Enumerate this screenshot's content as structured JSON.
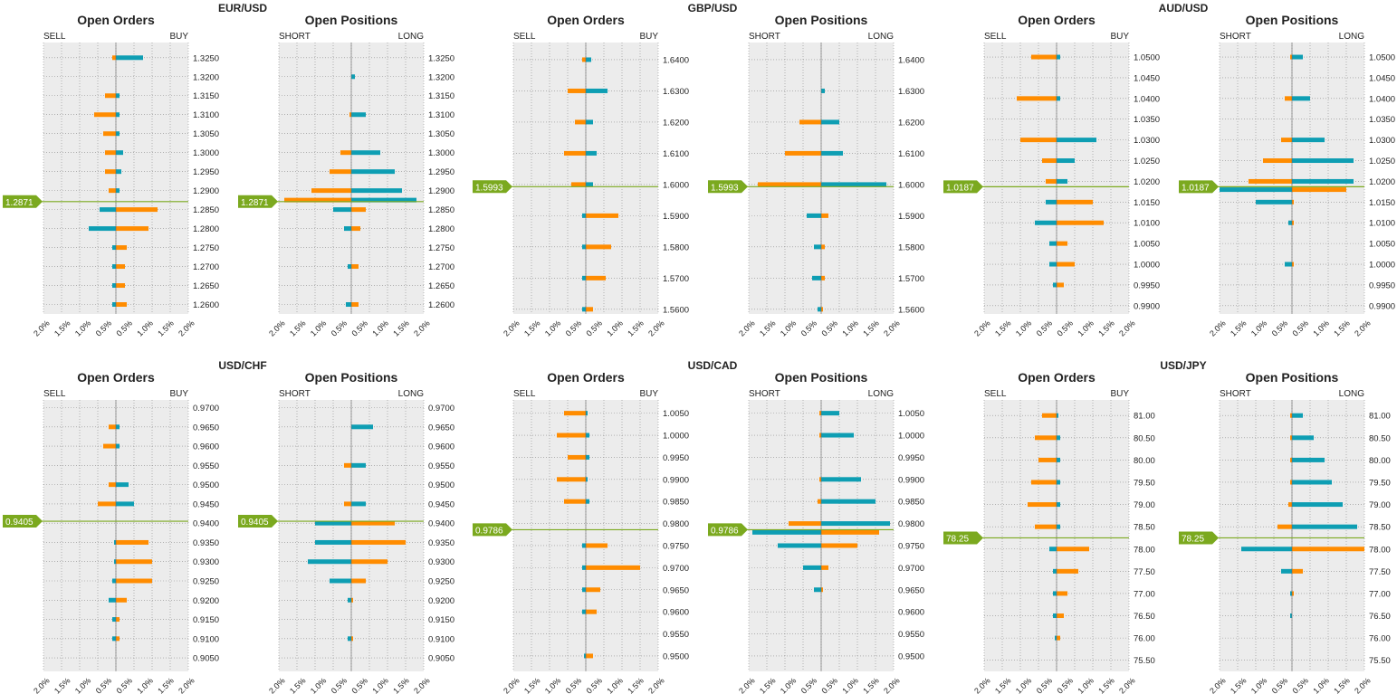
{
  "colors": {
    "panel_bg": "#ececec",
    "grid": "#8a8a8a",
    "orange": "#ff8c00",
    "teal": "#0e9eb3",
    "price_line": "#7ba91f",
    "price_tag_bg": "#7ba91f",
    "price_tag_text": "#ffffff",
    "text": "#222222"
  },
  "x_ticks": [
    "2.0%",
    "1.5%",
    "1.0%",
    "0.5%",
    "0.5%",
    "1.0%",
    "1.5%",
    "2.0%"
  ],
  "chart_data": [
    {
      "pair": "EUR/USD",
      "price": 1.2871,
      "price_label": "1.2871",
      "y_ticks": [
        "1.2600",
        "1.2650",
        "1.2700",
        "1.2750",
        "1.2800",
        "1.2850",
        "1.2900",
        "1.2950",
        "1.3000",
        "1.3050",
        "1.3100",
        "1.3150",
        "1.3200",
        "1.3250"
      ],
      "panels": [
        {
          "type": "bar",
          "title": "Open Orders",
          "left_label": "SELL",
          "right_label": "BUY",
          "ylim": [
            1.2575,
            1.329
          ],
          "xlim": [
            -2.0,
            2.0
          ],
          "levels": [
            {
              "y": 1.325,
              "left": 0.1,
              "right": 0.75
            },
            {
              "y": 1.315,
              "left": 0.3,
              "right": 0.1
            },
            {
              "y": 1.31,
              "left": 0.6,
              "right": 0.1
            },
            {
              "y": 1.305,
              "left": 0.35,
              "right": 0.1
            },
            {
              "y": 1.3,
              "left": 0.3,
              "right": 0.2
            },
            {
              "y": 1.295,
              "left": 0.3,
              "right": 0.15
            },
            {
              "y": 1.29,
              "left": 0.2,
              "right": 0.1
            },
            {
              "y": 1.285,
              "left": 0.45,
              "right": 1.15
            },
            {
              "y": 1.28,
              "left": 0.75,
              "right": 0.9
            },
            {
              "y": 1.275,
              "left": 0.1,
              "right": 0.3
            },
            {
              "y": 1.27,
              "left": 0.1,
              "right": 0.25
            },
            {
              "y": 1.265,
              "left": 0.1,
              "right": 0.25
            },
            {
              "y": 1.26,
              "left": 0.1,
              "right": 0.3
            }
          ]
        },
        {
          "type": "bar",
          "title": "Open Positions",
          "left_label": "SHORT",
          "right_label": "LONG",
          "ylim": [
            1.2575,
            1.329
          ],
          "xlim": [
            -2.0,
            2.0
          ],
          "levels": [
            {
              "y": 1.32,
              "left": 0.0,
              "right": 0.1
            },
            {
              "y": 1.31,
              "left": 0.05,
              "right": 0.4
            },
            {
              "y": 1.3,
              "left": 0.3,
              "right": 0.8
            },
            {
              "y": 1.295,
              "left": 0.6,
              "right": 1.2
            },
            {
              "y": 1.29,
              "left": 1.1,
              "right": 1.4
            },
            {
              "y": 1.2875,
              "left": 1.85,
              "right": 1.8
            },
            {
              "y": 1.285,
              "left": 0.5,
              "right": 0.4
            },
            {
              "y": 1.28,
              "left": 0.2,
              "right": 0.25
            },
            {
              "y": 1.27,
              "left": 0.1,
              "right": 0.2
            },
            {
              "y": 1.26,
              "left": 0.15,
              "right": 0.2
            }
          ]
        }
      ]
    },
    {
      "pair": "GBP/USD",
      "price": 1.5993,
      "price_label": "1.5993",
      "y_ticks": [
        "1.5600",
        "1.5700",
        "1.5800",
        "1.5900",
        "1.6000",
        "1.6100",
        "1.6200",
        "1.6300",
        "1.6400"
      ],
      "panels": [
        {
          "type": "bar",
          "title": "Open Orders",
          "left_label": "SELL",
          "right_label": "BUY",
          "ylim": [
            1.5585,
            1.6455
          ],
          "xlim": [
            -2.0,
            2.0
          ],
          "levels": [
            {
              "y": 1.64,
              "left": 0.1,
              "right": 0.15
            },
            {
              "y": 1.63,
              "left": 0.5,
              "right": 0.6
            },
            {
              "y": 1.62,
              "left": 0.3,
              "right": 0.2
            },
            {
              "y": 1.61,
              "left": 0.6,
              "right": 0.3
            },
            {
              "y": 1.6,
              "left": 0.4,
              "right": 0.2
            },
            {
              "y": 1.59,
              "left": 0.1,
              "right": 0.9
            },
            {
              "y": 1.58,
              "left": 0.1,
              "right": 0.7
            },
            {
              "y": 1.57,
              "left": 0.1,
              "right": 0.55
            },
            {
              "y": 1.56,
              "left": 0.1,
              "right": 0.2
            }
          ]
        },
        {
          "type": "bar",
          "title": "Open Positions",
          "left_label": "SHORT",
          "right_label": "LONG",
          "ylim": [
            1.5585,
            1.6455
          ],
          "xlim": [
            -2.0,
            2.0
          ],
          "levels": [
            {
              "y": 1.63,
              "left": 0.0,
              "right": 0.1
            },
            {
              "y": 1.62,
              "left": 0.6,
              "right": 0.5
            },
            {
              "y": 1.61,
              "left": 1.0,
              "right": 0.6
            },
            {
              "y": 1.6,
              "left": 1.75,
              "right": 1.8
            },
            {
              "y": 1.59,
              "left": 0.4,
              "right": 0.2
            },
            {
              "y": 1.58,
              "left": 0.2,
              "right": 0.1
            },
            {
              "y": 1.57,
              "left": 0.25,
              "right": 0.1
            },
            {
              "y": 1.56,
              "left": 0.1,
              "right": 0.05
            }
          ]
        }
      ]
    },
    {
      "pair": "AUD/USD",
      "price": 1.0187,
      "price_label": "1.0187",
      "y_ticks": [
        "0.9900",
        "0.9950",
        "1.0000",
        "1.0050",
        "1.0100",
        "1.0150",
        "1.0200",
        "1.0250",
        "1.0300",
        "1.0350",
        "1.0400",
        "1.0450",
        "1.0500"
      ],
      "panels": [
        {
          "type": "bar",
          "title": "Open Orders",
          "left_label": "SELL",
          "right_label": "BUY",
          "ylim": [
            0.988,
            1.0535
          ],
          "xlim": [
            -2.0,
            2.0
          ],
          "levels": [
            {
              "y": 1.05,
              "left": 0.7,
              "right": 0.1
            },
            {
              "y": 1.04,
              "left": 1.1,
              "right": 0.1
            },
            {
              "y": 1.03,
              "left": 1.0,
              "right": 1.1
            },
            {
              "y": 1.025,
              "left": 0.4,
              "right": 0.5
            },
            {
              "y": 1.02,
              "left": 0.3,
              "right": 0.3
            },
            {
              "y": 1.015,
              "left": 0.3,
              "right": 1.0
            },
            {
              "y": 1.01,
              "left": 0.6,
              "right": 1.3
            },
            {
              "y": 1.005,
              "left": 0.2,
              "right": 0.3
            },
            {
              "y": 1.0,
              "left": 0.2,
              "right": 0.5
            },
            {
              "y": 0.995,
              "left": 0.1,
              "right": 0.2
            }
          ]
        },
        {
          "type": "bar",
          "title": "Open Positions",
          "left_label": "SHORT",
          "right_label": "LONG",
          "ylim": [
            0.988,
            1.0535
          ],
          "xlim": [
            -2.0,
            2.0
          ],
          "levels": [
            {
              "y": 1.05,
              "left": 0.05,
              "right": 0.3
            },
            {
              "y": 1.04,
              "left": 0.2,
              "right": 0.5
            },
            {
              "y": 1.03,
              "left": 0.3,
              "right": 0.9
            },
            {
              "y": 1.025,
              "left": 0.8,
              "right": 1.7
            },
            {
              "y": 1.02,
              "left": 1.2,
              "right": 1.7
            },
            {
              "y": 1.018,
              "left": 2.0,
              "right": 1.5
            },
            {
              "y": 1.015,
              "left": 1.0,
              "right": 0.05
            },
            {
              "y": 1.01,
              "left": 0.1,
              "right": 0.05
            },
            {
              "y": 1.0,
              "left": 0.2,
              "right": 0.05
            }
          ]
        }
      ]
    },
    {
      "pair": "USD/CHF",
      "price": 0.9405,
      "price_label": "0.9405",
      "y_ticks": [
        "0.9050",
        "0.9100",
        "0.9150",
        "0.9200",
        "0.9250",
        "0.9300",
        "0.9350",
        "0.9400",
        "0.9450",
        "0.9500",
        "0.9550",
        "0.9600",
        "0.9650",
        "0.9700"
      ],
      "panels": [
        {
          "type": "bar",
          "title": "Open Orders",
          "left_label": "SELL",
          "right_label": "BUY",
          "ylim": [
            0.9015,
            0.972
          ],
          "xlim": [
            -2.0,
            2.0
          ],
          "levels": [
            {
              "y": 0.965,
              "left": 0.2,
              "right": 0.1
            },
            {
              "y": 0.96,
              "left": 0.35,
              "right": 0.1
            },
            {
              "y": 0.95,
              "left": 0.2,
              "right": 0.35
            },
            {
              "y": 0.945,
              "left": 0.5,
              "right": 0.5
            },
            {
              "y": 0.935,
              "left": 0.05,
              "right": 0.9
            },
            {
              "y": 0.93,
              "left": 0.05,
              "right": 1.0
            },
            {
              "y": 0.925,
              "left": 0.1,
              "right": 1.0
            },
            {
              "y": 0.92,
              "left": 0.2,
              "right": 0.3
            },
            {
              "y": 0.915,
              "left": 0.1,
              "right": 0.1
            },
            {
              "y": 0.91,
              "left": 0.1,
              "right": 0.1
            }
          ]
        },
        {
          "type": "bar",
          "title": "Open Positions",
          "left_label": "SHORT",
          "right_label": "LONG",
          "ylim": [
            0.9015,
            0.972
          ],
          "xlim": [
            -2.0,
            2.0
          ],
          "levels": [
            {
              "y": 0.965,
              "left": 0.0,
              "right": 0.6
            },
            {
              "y": 0.955,
              "left": 0.2,
              "right": 0.4
            },
            {
              "y": 0.945,
              "left": 0.2,
              "right": 0.4
            },
            {
              "y": 0.94,
              "left": 1.0,
              "right": 1.2
            },
            {
              "y": 0.935,
              "left": 1.0,
              "right": 1.5
            },
            {
              "y": 0.93,
              "left": 1.2,
              "right": 1.0
            },
            {
              "y": 0.925,
              "left": 0.6,
              "right": 0.4
            },
            {
              "y": 0.92,
              "left": 0.1,
              "right": 0.05
            },
            {
              "y": 0.91,
              "left": 0.1,
              "right": 0.05
            }
          ]
        }
      ]
    },
    {
      "pair": "USD/CAD",
      "price": 0.9786,
      "price_label": "0.9786",
      "y_ticks": [
        "0.9500",
        "0.9550",
        "0.9600",
        "0.9650",
        "0.9700",
        "0.9750",
        "0.9800",
        "0.9850",
        "0.9900",
        "0.9950",
        "1.0000",
        "1.0050"
      ],
      "panels": [
        {
          "type": "bar",
          "title": "Open Orders",
          "left_label": "SELL",
          "right_label": "BUY",
          "ylim": [
            0.9465,
            1.008
          ],
          "xlim": [
            -2.0,
            2.0
          ],
          "levels": [
            {
              "y": 1.005,
              "left": 0.6,
              "right": 0.05
            },
            {
              "y": 1.0,
              "left": 0.8,
              "right": 0.1
            },
            {
              "y": 0.995,
              "left": 0.5,
              "right": 0.1
            },
            {
              "y": 0.99,
              "left": 0.8,
              "right": 0.05
            },
            {
              "y": 0.985,
              "left": 0.6,
              "right": 0.1
            },
            {
              "y": 0.975,
              "left": 0.1,
              "right": 0.6
            },
            {
              "y": 0.97,
              "left": 0.1,
              "right": 1.5
            },
            {
              "y": 0.965,
              "left": 0.1,
              "right": 0.4
            },
            {
              "y": 0.96,
              "left": 0.1,
              "right": 0.3
            },
            {
              "y": 0.95,
              "left": 0.05,
              "right": 0.2
            }
          ]
        },
        {
          "type": "bar",
          "title": "Open Positions",
          "left_label": "SHORT",
          "right_label": "LONG",
          "ylim": [
            0.9465,
            1.008
          ],
          "xlim": [
            -2.0,
            2.0
          ],
          "levels": [
            {
              "y": 1.005,
              "left": 0.05,
              "right": 0.5
            },
            {
              "y": 1.0,
              "left": 0.05,
              "right": 0.9
            },
            {
              "y": 0.99,
              "left": 0.05,
              "right": 1.1
            },
            {
              "y": 0.985,
              "left": 0.1,
              "right": 1.5
            },
            {
              "y": 0.98,
              "left": 0.9,
              "right": 1.9
            },
            {
              "y": 0.978,
              "left": 1.9,
              "right": 1.6
            },
            {
              "y": 0.975,
              "left": 1.2,
              "right": 1.0
            },
            {
              "y": 0.97,
              "left": 0.5,
              "right": 0.2
            },
            {
              "y": 0.965,
              "left": 0.2,
              "right": 0.05
            }
          ]
        }
      ]
    },
    {
      "pair": "USD/JPY",
      "price": 78.25,
      "price_label": "78.25",
      "y_ticks": [
        "75.50",
        "76.00",
        "76.50",
        "77.00",
        "77.50",
        "78.00",
        "78.50",
        "79.00",
        "79.50",
        "80.00",
        "80.50",
        "81.00"
      ],
      "panels": [
        {
          "type": "bar",
          "title": "Open Orders",
          "left_label": "SELL",
          "right_label": "BUY",
          "ylim": [
            75.25,
            81.35
          ],
          "xlim": [
            -2.0,
            2.0
          ],
          "levels": [
            {
              "y": 81.0,
              "left": 0.4,
              "right": 0.05
            },
            {
              "y": 80.5,
              "left": 0.6,
              "right": 0.1
            },
            {
              "y": 80.0,
              "left": 0.5,
              "right": 0.1
            },
            {
              "y": 79.5,
              "left": 0.7,
              "right": 0.1
            },
            {
              "y": 79.0,
              "left": 0.8,
              "right": 0.1
            },
            {
              "y": 78.5,
              "left": 0.6,
              "right": 0.1
            },
            {
              "y": 78.0,
              "left": 0.2,
              "right": 0.9
            },
            {
              "y": 77.5,
              "left": 0.1,
              "right": 0.6
            },
            {
              "y": 77.0,
              "left": 0.1,
              "right": 0.3
            },
            {
              "y": 76.5,
              "left": 0.1,
              "right": 0.2
            },
            {
              "y": 76.0,
              "left": 0.05,
              "right": 0.1
            }
          ]
        },
        {
          "type": "bar",
          "title": "Open Positions",
          "left_label": "SHORT",
          "right_label": "LONG",
          "ylim": [
            75.25,
            81.35
          ],
          "xlim": [
            -2.0,
            2.0
          ],
          "levels": [
            {
              "y": 81.0,
              "left": 0.05,
              "right": 0.3
            },
            {
              "y": 80.5,
              "left": 0.05,
              "right": 0.6
            },
            {
              "y": 80.0,
              "left": 0.05,
              "right": 0.9
            },
            {
              "y": 79.5,
              "left": 0.05,
              "right": 1.1
            },
            {
              "y": 79.0,
              "left": 0.1,
              "right": 1.4
            },
            {
              "y": 78.5,
              "left": 0.4,
              "right": 1.8
            },
            {
              "y": 78.0,
              "left": 1.4,
              "right": 2.0
            },
            {
              "y": 77.5,
              "left": 0.3,
              "right": 0.3
            },
            {
              "y": 77.0,
              "left": 0.05,
              "right": 0.05
            },
            {
              "y": 76.5,
              "left": 0.05,
              "right": 0.0
            }
          ]
        }
      ]
    }
  ]
}
